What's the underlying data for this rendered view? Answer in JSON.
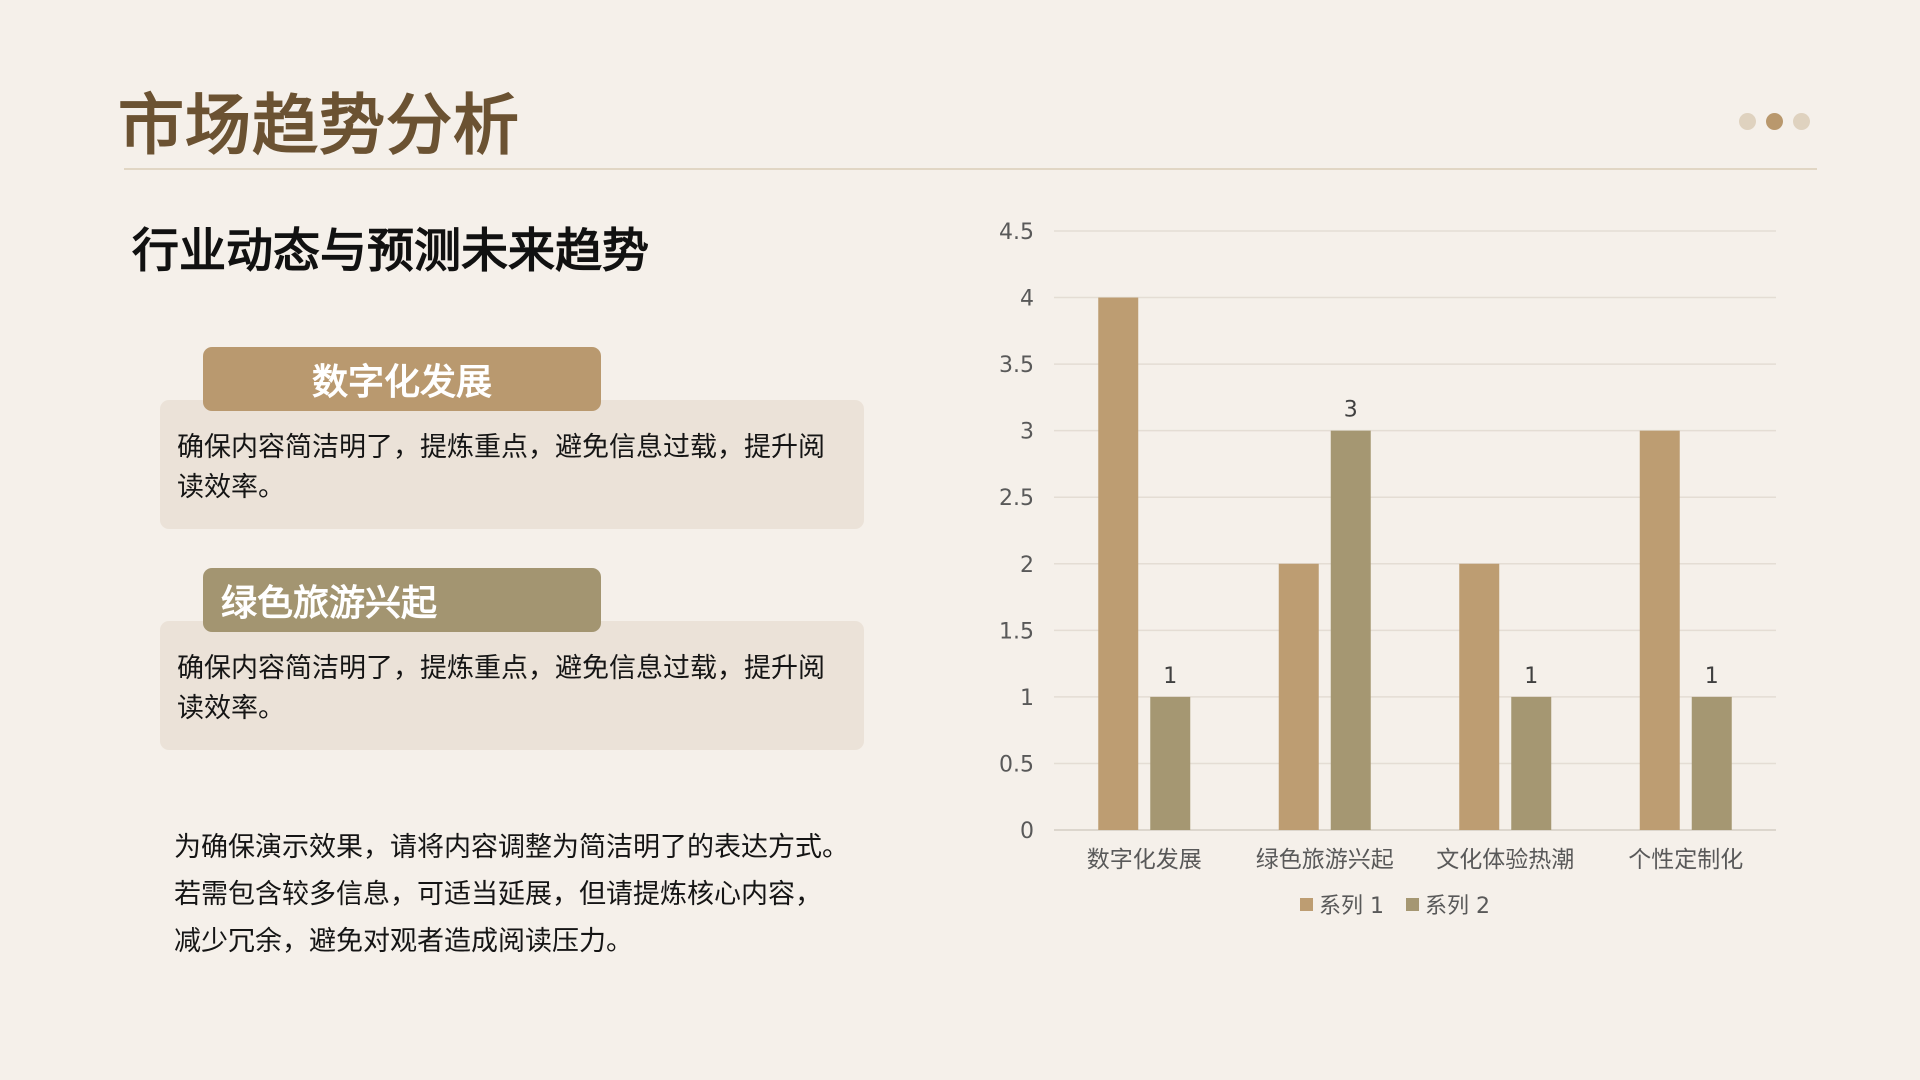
{
  "slide": {
    "title": "市场趋势分析",
    "subtitle": "行业动态与预测未来趋势",
    "cards": [
      {
        "tag": "数字化发展",
        "body": "确保内容简洁明了，提炼重点，避免信息过载，提升阅读效率。"
      },
      {
        "tag": "绿色旅游兴起",
        "body": "确保内容简洁明了，提炼重点，避免信息过载，提升阅读效率。"
      }
    ],
    "note_lines": [
      "为确保演示效果，请将内容调整为简洁明了的表达方式。",
      "若需包含较多信息，可适当延展，但请提炼核心内容，",
      "减少冗余，避免对观者造成阅读压力。"
    ]
  },
  "colors": {
    "background": "#f5f0ea",
    "title": "#6b5232",
    "series1": "#bd9d72",
    "series2": "#a59772"
  },
  "chart_data": {
    "type": "bar",
    "categories": [
      "数字化发展",
      "绿色旅游兴起",
      "文化体验热潮",
      "个性定制化"
    ],
    "series": [
      {
        "name": "系列 1",
        "values": [
          4,
          2,
          2,
          3
        ],
        "data_labels": [
          null,
          null,
          null,
          null
        ]
      },
      {
        "name": "系列 2",
        "values": [
          1,
          3,
          1,
          1
        ],
        "data_labels": [
          "1",
          "3",
          "1",
          "1"
        ]
      }
    ],
    "ylim": [
      0,
      4.5
    ],
    "yticks": [
      "0",
      "0.5",
      "1",
      "1.5",
      "2",
      "2.5",
      "3",
      "3.5",
      "4",
      "4.5"
    ],
    "grid": true,
    "legend": "bottom"
  }
}
